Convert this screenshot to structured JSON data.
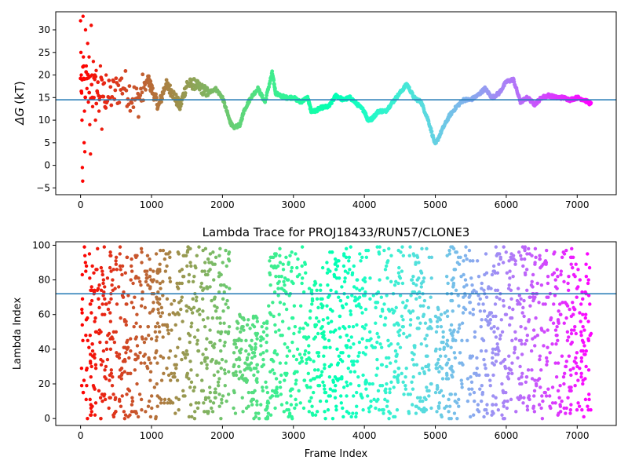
{
  "chart_data": [
    {
      "type": "scatter",
      "title": "",
      "xlabel": "",
      "ylabel": "ΔG (kT)",
      "ylabel_symbol": "ΔG",
      "ylabel_unit": "(kT)",
      "xlim": [
        -350,
        7550
      ],
      "ylim": [
        -6.5,
        34
      ],
      "xticks": [
        0,
        1000,
        2000,
        3000,
        4000,
        5000,
        6000,
        7000
      ],
      "yticks": [
        -5,
        0,
        5,
        10,
        15,
        20,
        25,
        30
      ],
      "grid": false,
      "hline": 14.5,
      "colormap": "rainbow",
      "trace": {
        "x": [
          0,
          200,
          400,
          600,
          800,
          950,
          1000,
          1100,
          1200,
          1300,
          1400,
          1500,
          1600,
          1700,
          1800,
          1900,
          2000,
          2100,
          2150,
          2250,
          2300,
          2400,
          2500,
          2600,
          2700,
          2750,
          2800,
          2900,
          3000,
          3100,
          3200,
          3250,
          3300,
          3400,
          3500,
          3600,
          3700,
          3800,
          3900,
          4000,
          4050,
          4100,
          4200,
          4300,
          4400,
          4500,
          4600,
          4700,
          4800,
          4900,
          5000,
          5100,
          5200,
          5300,
          5400,
          5500,
          5600,
          5700,
          5800,
          5900,
          6000,
          6100,
          6200,
          6300,
          6400,
          6500,
          6600,
          6700,
          6800,
          6900,
          7000,
          7100,
          7200
        ],
        "y": [
          18,
          17,
          15,
          18,
          14,
          19,
          17,
          13,
          18,
          16,
          13,
          18,
          18,
          17,
          16,
          17,
          15,
          10,
          8.3,
          9,
          12,
          15,
          17,
          14,
          20.5,
          16,
          15.5,
          15,
          15,
          14,
          15,
          12,
          12,
          12.8,
          13,
          15.5,
          14.5,
          15,
          13.5,
          12,
          10,
          10.2,
          12,
          12,
          14,
          16,
          18,
          15,
          14,
          10,
          4.5,
          8,
          11,
          13,
          14.5,
          14.5,
          15.5,
          17,
          15,
          16,
          18.5,
          19,
          14,
          15,
          13.5,
          15,
          15.5,
          15,
          15,
          14.5,
          15,
          14.5,
          13.5
        ]
      },
      "early_scatter": {
        "x": [
          0,
          5,
          10,
          15,
          20,
          25,
          30,
          35,
          40,
          45,
          50,
          55,
          60,
          70,
          80,
          90,
          100,
          110,
          120,
          130,
          140,
          150,
          160,
          170,
          180,
          190,
          200,
          210,
          220,
          240,
          260,
          280,
          300,
          320,
          340,
          360
        ],
        "y": [
          32,
          25,
          20,
          16,
          10,
          -0.5,
          -3.5,
          33,
          24,
          22,
          5,
          12,
          3,
          30,
          22,
          17,
          27,
          14,
          24,
          9,
          2.5,
          31,
          20,
          13,
          23,
          15,
          19,
          10,
          21,
          16,
          12,
          22,
          8,
          18,
          14,
          20
        ]
      }
    },
    {
      "type": "scatter",
      "title": "Lambda Trace for PROJ18433/RUN57/CLONE3",
      "xlabel": "Frame Index",
      "ylabel": "Lambda Index",
      "xlim": [
        -350,
        7550
      ],
      "ylim": [
        -4,
        102
      ],
      "xticks": [
        0,
        1000,
        2000,
        3000,
        4000,
        5000,
        6000,
        7000
      ],
      "yticks": [
        0,
        20,
        40,
        60,
        80,
        100
      ],
      "grid": false,
      "hline": 72,
      "colormap": "rainbow",
      "y_range": [
        0,
        99
      ],
      "num_frames": 7200,
      "dense_bands": [
        [
          0,
          200,
          99
        ],
        [
          200,
          1000,
          99
        ],
        [
          1000,
          2000,
          99
        ],
        [
          2000,
          2100,
          99
        ],
        [
          2150,
          2650,
          60
        ],
        [
          2650,
          3200,
          99
        ],
        [
          3200,
          3400,
          80
        ],
        [
          3400,
          4950,
          99
        ],
        [
          5000,
          5150,
          65
        ],
        [
          5150,
          7200,
          99
        ]
      ]
    }
  ]
}
